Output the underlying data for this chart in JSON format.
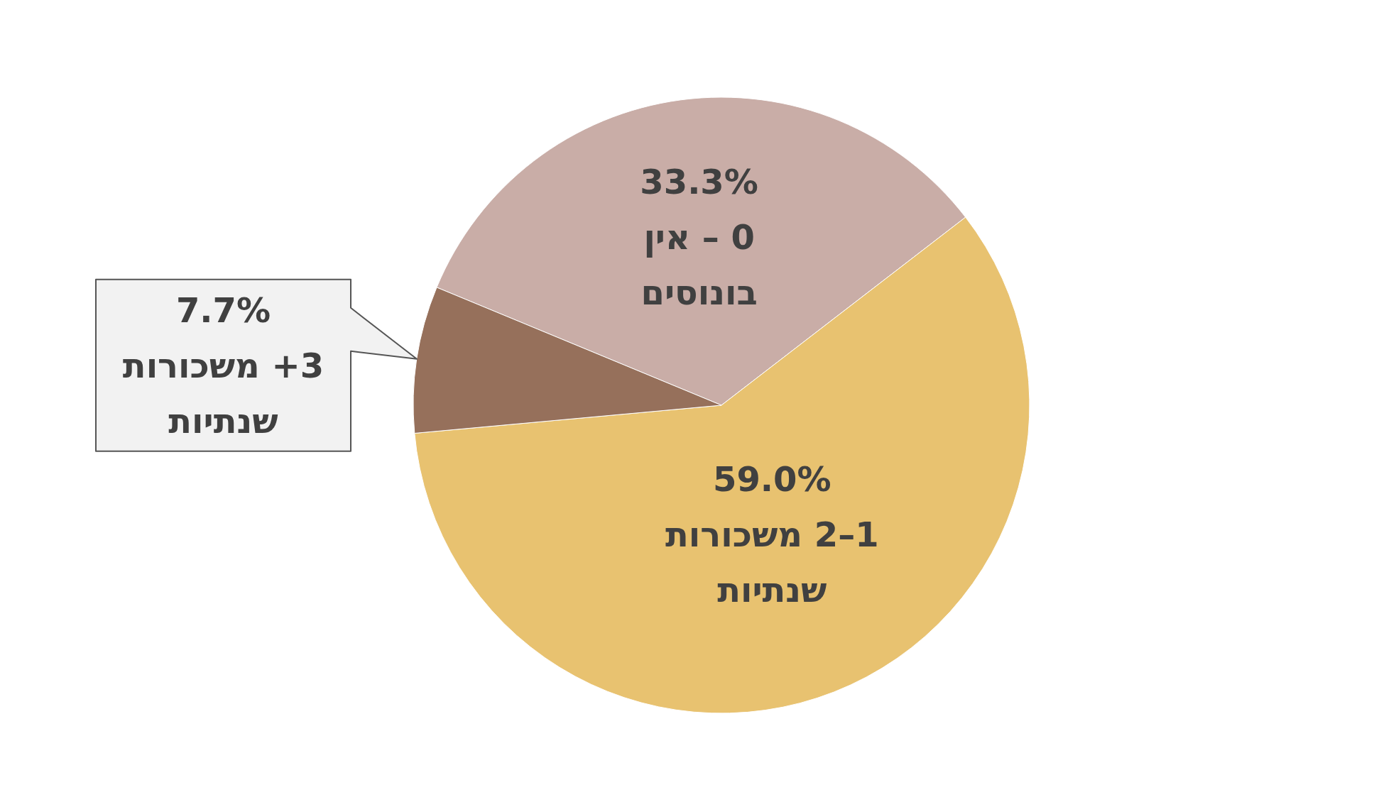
{
  "chart_data": {
    "type": "pie",
    "categories": [
      "0 – אין בונוסים",
      "1–2 משכורות שנתיות",
      "3+ משכורות שנתיות"
    ],
    "values": [
      33.3,
      59.0,
      7.7
    ],
    "colors": [
      "#c9ada7",
      "#e8c270",
      "#96705b"
    ],
    "value_labels": [
      "33.3%",
      "59.0%",
      "7.7%"
    ]
  }
}
